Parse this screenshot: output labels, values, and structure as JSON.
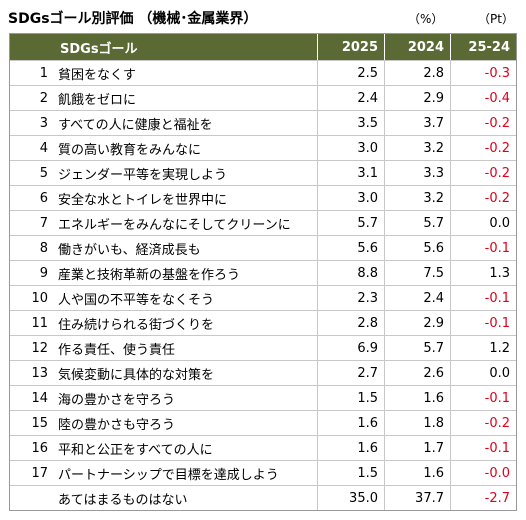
{
  "title": "SDGsゴール別評価 （機械･金属業界）",
  "units": [
    "（%）",
    "（Pt）"
  ],
  "table": {
    "header": [
      "SDGsゴール",
      "2025",
      "2024",
      "25-24"
    ],
    "rows": [
      {
        "no": "1",
        "goal": "貧困をなくす",
        "y2025": "2.5",
        "y2024": "2.8",
        "diff": "-0.3"
      },
      {
        "no": "2",
        "goal": "飢餓をゼロに",
        "y2025": "2.4",
        "y2024": "2.9",
        "diff": "-0.4"
      },
      {
        "no": "3",
        "goal": "すべての人に健康と福祉を",
        "y2025": "3.5",
        "y2024": "3.7",
        "diff": "-0.2"
      },
      {
        "no": "4",
        "goal": "質の高い教育をみんなに",
        "y2025": "3.0",
        "y2024": "3.2",
        "diff": "-0.2"
      },
      {
        "no": "5",
        "goal": "ジェンダー平等を実現しよう",
        "y2025": "3.1",
        "y2024": "3.3",
        "diff": "-0.2"
      },
      {
        "no": "6",
        "goal": "安全な水とトイレを世界中に",
        "y2025": "3.0",
        "y2024": "3.2",
        "diff": "-0.2"
      },
      {
        "no": "7",
        "goal": "エネルギーをみんなにそしてクリーンに",
        "y2025": "5.7",
        "y2024": "5.7",
        "diff": "0.0"
      },
      {
        "no": "8",
        "goal": "働きがいも、経済成長も",
        "y2025": "5.6",
        "y2024": "5.6",
        "diff": "-0.1"
      },
      {
        "no": "9",
        "goal": "産業と技術革新の基盤を作ろう",
        "y2025": "8.8",
        "y2024": "7.5",
        "diff": "1.3"
      },
      {
        "no": "10",
        "goal": "人や国の不平等をなくそう",
        "y2025": "2.3",
        "y2024": "2.4",
        "diff": "-0.1"
      },
      {
        "no": "11",
        "goal": "住み続けられる街づくりを",
        "y2025": "2.8",
        "y2024": "2.9",
        "diff": "-0.1"
      },
      {
        "no": "12",
        "goal": "作る責任、使う責任",
        "y2025": "6.9",
        "y2024": "5.7",
        "diff": "1.2"
      },
      {
        "no": "13",
        "goal": "気候変動に具体的な対策を",
        "y2025": "2.7",
        "y2024": "2.6",
        "diff": "0.0"
      },
      {
        "no": "14",
        "goal": "海の豊かさを守ろう",
        "y2025": "1.5",
        "y2024": "1.6",
        "diff": "-0.1"
      },
      {
        "no": "15",
        "goal": "陸の豊かさも守ろう",
        "y2025": "1.6",
        "y2024": "1.8",
        "diff": "-0.2"
      },
      {
        "no": "16",
        "goal": "平和と公正をすべての人に",
        "y2025": "1.6",
        "y2024": "1.7",
        "diff": "-0.1"
      },
      {
        "no": "17",
        "goal": "パートナーシップで目標を達成しよう",
        "y2025": "1.5",
        "y2024": "1.6",
        "diff": "-0.0"
      },
      {
        "goal": "あてはまるものはない",
        "y2025": "35.0",
        "y2024": "37.7",
        "diff": "-2.7"
      }
    ]
  }
}
